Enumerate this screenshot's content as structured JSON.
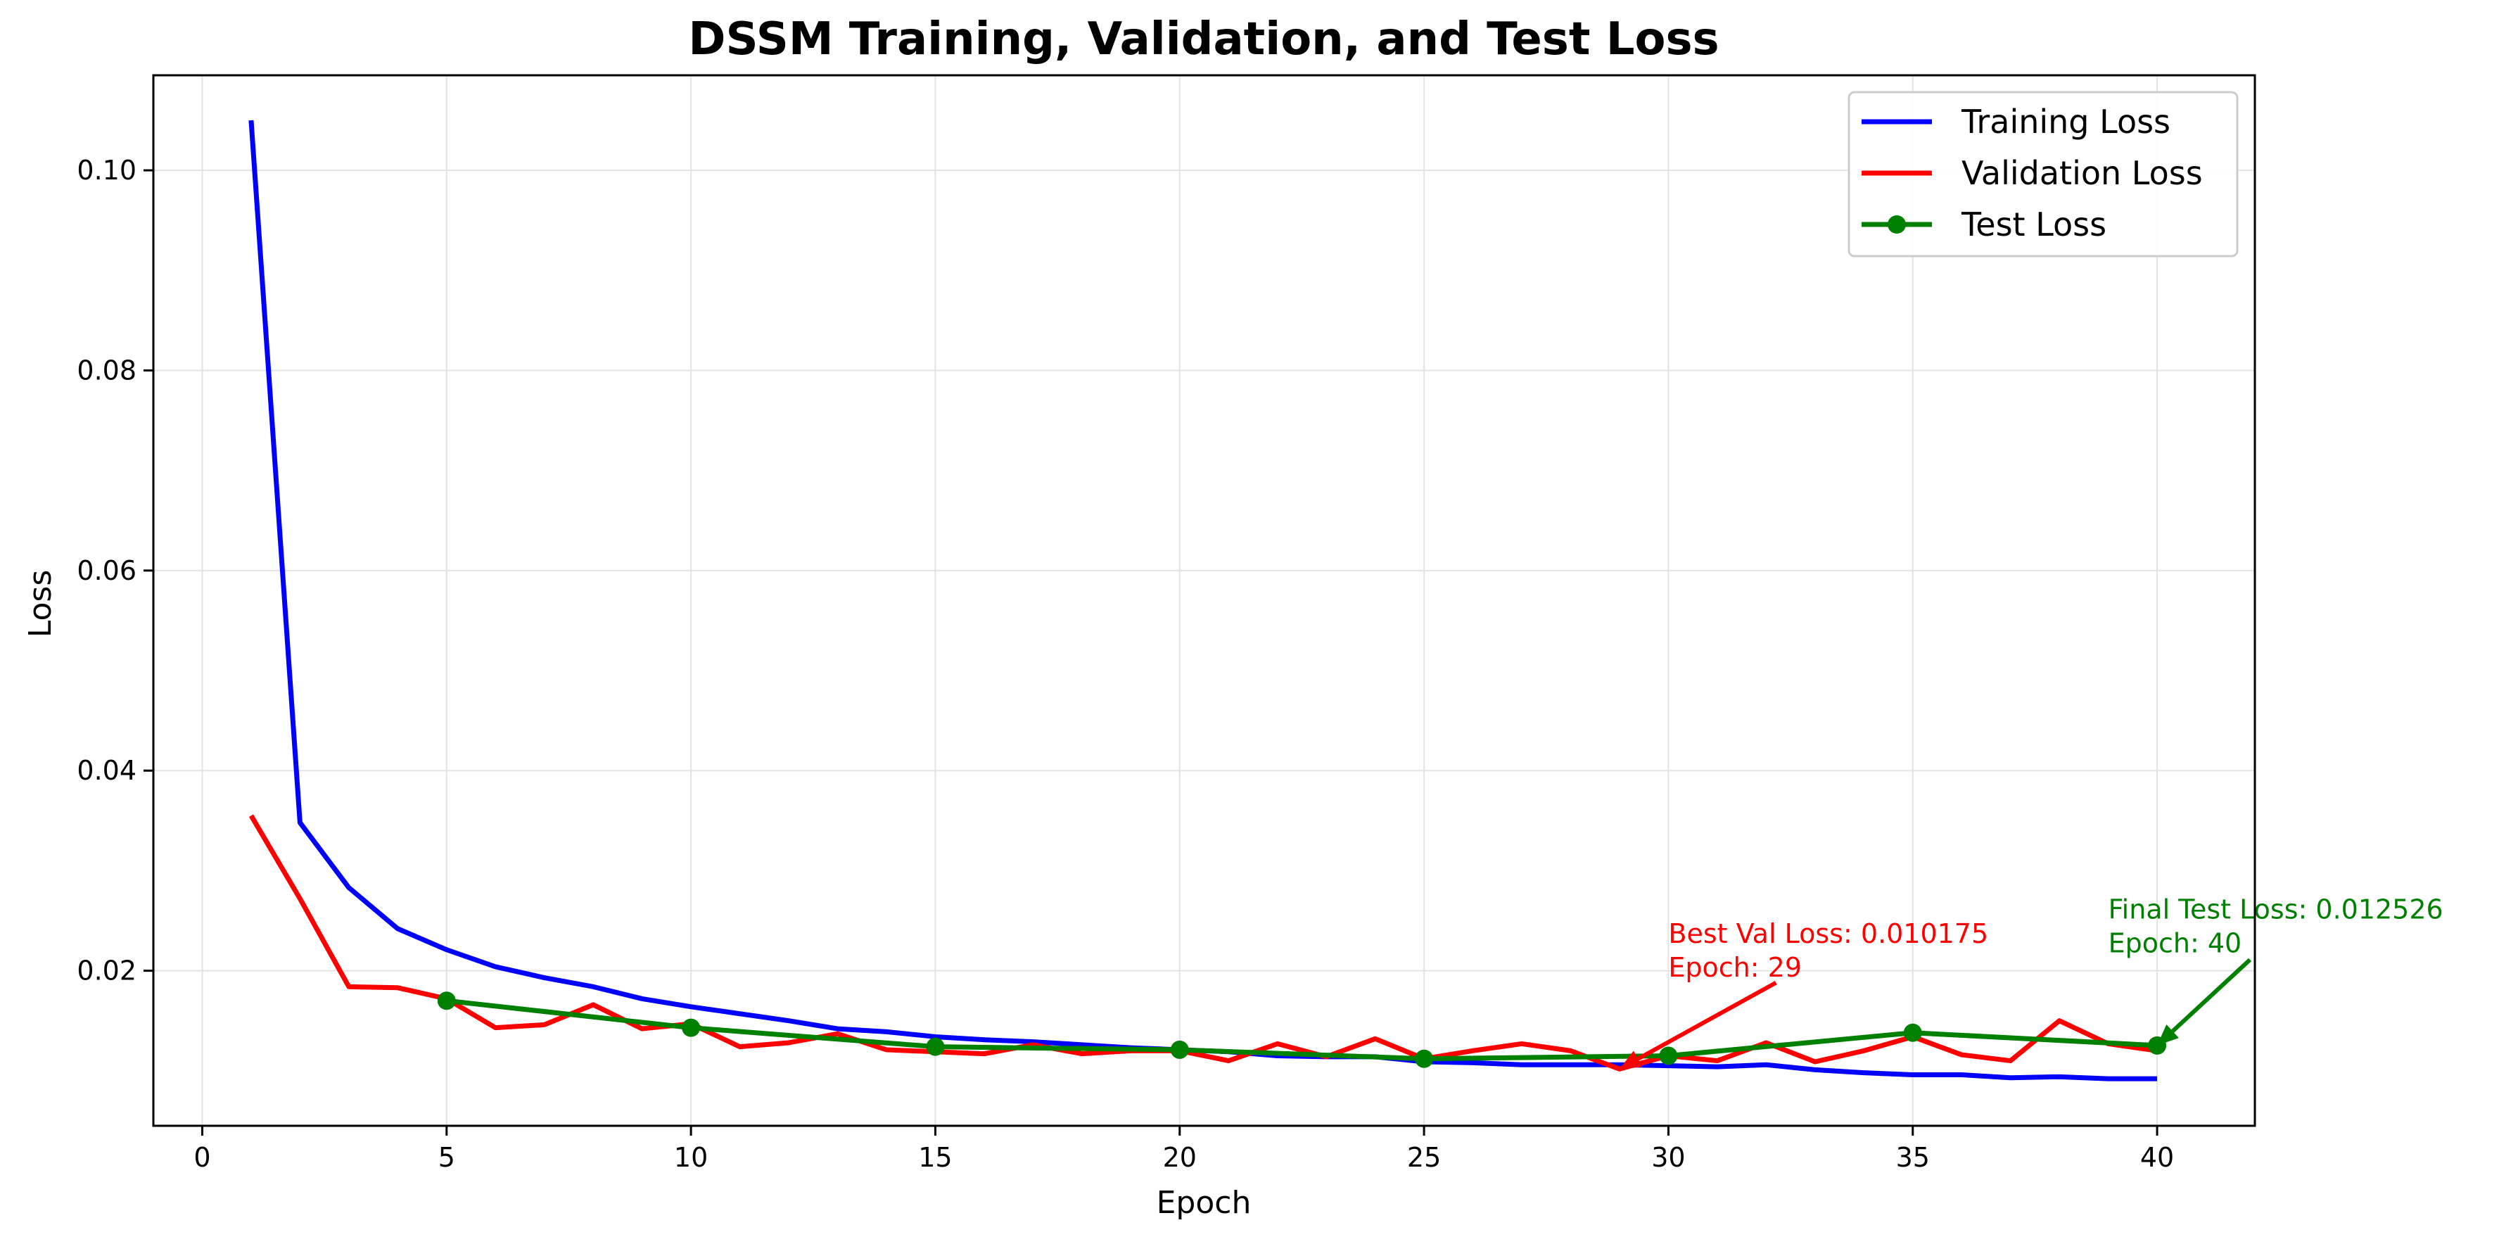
{
  "chart_data": {
    "type": "line",
    "title": "DSSM Training, Validation, and Test Loss",
    "xlabel": "Epoch",
    "ylabel": "Loss",
    "xlim": [
      -1,
      42
    ],
    "ylim": [
      0.0045,
      0.1095
    ],
    "xticks": [
      0,
      5,
      10,
      15,
      20,
      25,
      30,
      35,
      40
    ],
    "yticks": [
      0.02,
      0.04,
      0.06,
      0.08,
      0.1
    ],
    "ytick_labels": [
      "0.02",
      "0.04",
      "0.06",
      "0.08",
      "0.10"
    ],
    "grid": true,
    "legend_position": "top-right",
    "series": [
      {
        "name": "Training Loss",
        "color": "#0000ff",
        "marker": false,
        "x": [
          1,
          2,
          3,
          4,
          5,
          6,
          7,
          8,
          9,
          10,
          11,
          12,
          13,
          14,
          15,
          16,
          17,
          18,
          19,
          20,
          21,
          22,
          23,
          24,
          25,
          26,
          27,
          28,
          29,
          30,
          31,
          32,
          33,
          34,
          35,
          36,
          37,
          38,
          39,
          40
        ],
        "values": [
          0.105,
          0.0348,
          0.0283,
          0.0242,
          0.0221,
          0.0204,
          0.0193,
          0.0184,
          0.0172,
          0.0164,
          0.0157,
          0.015,
          0.0142,
          0.0139,
          0.0134,
          0.0131,
          0.0129,
          0.0126,
          0.0123,
          0.0121,
          0.0119,
          0.0115,
          0.0114,
          0.0114,
          0.0109,
          0.0108,
          0.0106,
          0.0106,
          0.0106,
          0.0105,
          0.0104,
          0.0106,
          0.0101,
          0.0098,
          0.0096,
          0.0096,
          0.0093,
          0.0094,
          0.0092,
          0.0092
        ]
      },
      {
        "name": "Validation Loss",
        "color": "#ff0000",
        "marker": false,
        "x": [
          1,
          2,
          3,
          4,
          5,
          6,
          7,
          8,
          9,
          10,
          11,
          12,
          13,
          14,
          15,
          16,
          17,
          18,
          19,
          20,
          21,
          22,
          23,
          24,
          25,
          26,
          27,
          28,
          29,
          30,
          31,
          32,
          33,
          34,
          35,
          36,
          37,
          38,
          39,
          40
        ],
        "values": [
          0.0355,
          0.0272,
          0.0184,
          0.0183,
          0.0172,
          0.0143,
          0.0146,
          0.0166,
          0.0142,
          0.0147,
          0.0124,
          0.0128,
          0.0137,
          0.0121,
          0.0119,
          0.0117,
          0.0126,
          0.0117,
          0.012,
          0.012,
          0.011,
          0.0127,
          0.0114,
          0.0132,
          0.0112,
          0.012,
          0.0127,
          0.012,
          0.010175,
          0.0115,
          0.011,
          0.0128,
          0.0109,
          0.012,
          0.0134,
          0.0116,
          0.011,
          0.015,
          0.0127,
          0.012
        ]
      },
      {
        "name": "Test Loss",
        "color": "#008000",
        "marker": true,
        "x": [
          5,
          10,
          15,
          20,
          25,
          30,
          35,
          40
        ],
        "values": [
          0.017,
          0.0143,
          0.0124,
          0.0121,
          0.0112,
          0.0115,
          0.0138,
          0.012526
        ]
      }
    ],
    "annotations": [
      {
        "lines": [
          "Best Val Loss: 0.010175",
          "Epoch: 29"
        ],
        "color": "#ff0000",
        "point": [
          29,
          0.010175
        ],
        "text_at": [
          30,
          0.0228
        ],
        "arrow_from": [
          32.2,
          0.0188
        ]
      },
      {
        "lines": [
          "Final Test Loss: 0.012526",
          "Epoch: 40"
        ],
        "color": "#008000",
        "point": [
          40,
          0.012526
        ],
        "text_at": [
          39,
          0.0252
        ],
        "arrow_from": [
          41.9,
          0.0211
        ]
      }
    ]
  }
}
